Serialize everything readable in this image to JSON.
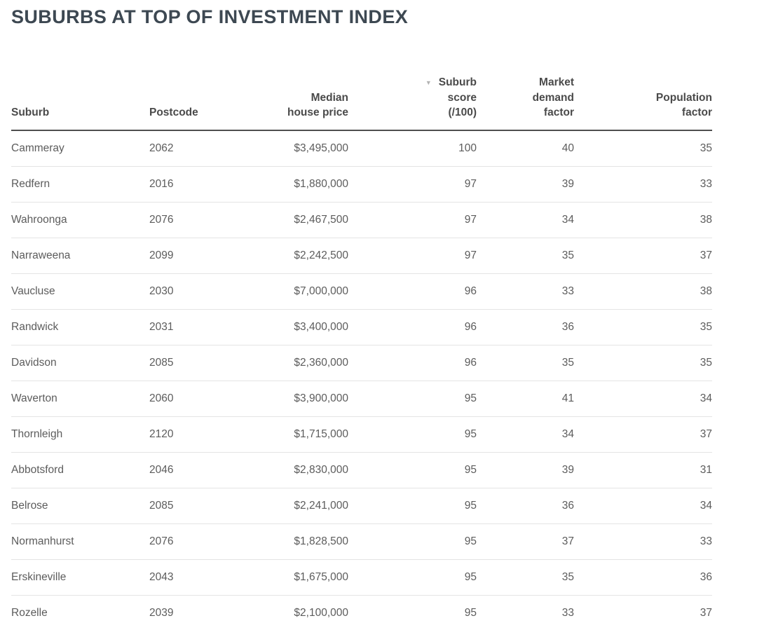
{
  "title": "SUBURBS AT TOP OF INVESTMENT INDEX",
  "table": {
    "sort_icon": "▼",
    "sorted_column": "Suburb score (/100)",
    "sort_direction": "descending",
    "headers": [
      {
        "label": "Suburb",
        "align": "left"
      },
      {
        "label": "Postcode",
        "align": "left"
      },
      {
        "label": "Median\nhouse price",
        "align": "right"
      },
      {
        "label": "Suburb\nscore\n(/100)",
        "align": "right"
      },
      {
        "label": "Market\ndemand\nfactor",
        "align": "right"
      },
      {
        "label": "Population\nfactor",
        "align": "right"
      }
    ],
    "cell_names": [
      "suburb",
      "postcode",
      "median-house-price",
      "suburb-score",
      "market-demand-factor",
      "population-factor"
    ]
  },
  "colors": {
    "title_text": "#3d4852",
    "header_text": "#4a4a4a",
    "body_text": "#5c5c5c",
    "row_divider": "#e4e4e4",
    "header_rule": "#4f4f4f",
    "sort_arrow": "#b3b3b3",
    "background": "#ffffff"
  },
  "chart_data": {
    "type": "table",
    "title": "SUBURBS AT TOP OF INVESTMENT INDEX",
    "columns": [
      "Suburb",
      "Postcode",
      "Median house price",
      "Suburb score (/100)",
      "Market demand factor",
      "Population factor"
    ],
    "sorted_by": "Suburb score (/100)",
    "sort_order": "descending",
    "rows": [
      [
        "Cammeray",
        "2062",
        "$3,495,000",
        "100",
        "40",
        "35"
      ],
      [
        "Redfern",
        "2016",
        "$1,880,000",
        "97",
        "39",
        "33"
      ],
      [
        "Wahroonga",
        "2076",
        "$2,467,500",
        "97",
        "34",
        "38"
      ],
      [
        "Narraweena",
        "2099",
        "$2,242,500",
        "97",
        "35",
        "37"
      ],
      [
        "Vaucluse",
        "2030",
        "$7,000,000",
        "96",
        "33",
        "38"
      ],
      [
        "Randwick",
        "2031",
        "$3,400,000",
        "96",
        "36",
        "35"
      ],
      [
        "Davidson",
        "2085",
        "$2,360,000",
        "96",
        "35",
        "35"
      ],
      [
        "Waverton",
        "2060",
        "$3,900,000",
        "95",
        "41",
        "34"
      ],
      [
        "Thornleigh",
        "2120",
        "$1,715,000",
        "95",
        "34",
        "37"
      ],
      [
        "Abbotsford",
        "2046",
        "$2,830,000",
        "95",
        "39",
        "31"
      ],
      [
        "Belrose",
        "2085",
        "$2,241,000",
        "95",
        "36",
        "34"
      ],
      [
        "Normanhurst",
        "2076",
        "$1,828,500",
        "95",
        "37",
        "33"
      ],
      [
        "Erskineville",
        "2043",
        "$1,675,000",
        "95",
        "35",
        "36"
      ],
      [
        "Rozelle",
        "2039",
        "$2,100,000",
        "95",
        "33",
        "37"
      ]
    ]
  }
}
